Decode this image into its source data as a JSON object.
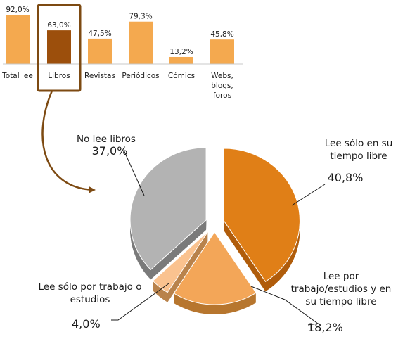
{
  "chart_data": [
    {
      "type": "bar",
      "categories": [
        "Total lee",
        "Libros",
        "Revistas",
        "Periódicos",
        "Cómics",
        "Webs, blogs, foros"
      ],
      "category_lines": [
        [
          "Total lee"
        ],
        [
          "Libros"
        ],
        [
          "Revistas"
        ],
        [
          "Periódicos"
        ],
        [
          "Cómics"
        ],
        [
          "Webs,",
          "blogs,",
          "foros"
        ]
      ],
      "values": [
        92.0,
        63.0,
        47.5,
        79.3,
        13.2,
        45.8
      ],
      "value_labels": [
        "92,0%",
        "63,0%",
        "47,5%",
        "79,3%",
        "13,2%",
        "45,8%"
      ],
      "highlight": "Libros",
      "ylim": [
        0,
        100
      ],
      "colors": {
        "bar": "#f4a94f",
        "highlight": "#9c4f0c",
        "frame": "#7d4a12"
      }
    },
    {
      "type": "pie",
      "style": "3d-exploded",
      "slices": [
        {
          "label": "Lee sólo en su tiempo libre",
          "label_lines": [
            "Lee sólo en su",
            "tiempo libre"
          ],
          "value": 40.8,
          "value_label": "40,8%",
          "color": "#e07f17",
          "side": "#b05d0c"
        },
        {
          "label": "Lee por trabajo/estudios y en su tiempo libre",
          "label_lines": [
            "Lee por",
            "trabajo/estudios  y en",
            "su tiempo libre"
          ],
          "value": 18.2,
          "value_label": "18,2%",
          "color": "#f3a658",
          "side": "#b7762f"
        },
        {
          "label": "Lee sólo por trabajo o estudios",
          "label_lines": [
            "Lee sólo por trabajo o",
            "estudios"
          ],
          "value": 4.0,
          "value_label": "4,0%",
          "color": "#fac28f",
          "side": "#b9834c"
        },
        {
          "label": "No lee libros",
          "label_lines": [
            "No lee libros"
          ],
          "value": 37.0,
          "value_label": "37,0%",
          "color": "#b3b3b3",
          "side": "#7b7b7b"
        }
      ]
    }
  ]
}
